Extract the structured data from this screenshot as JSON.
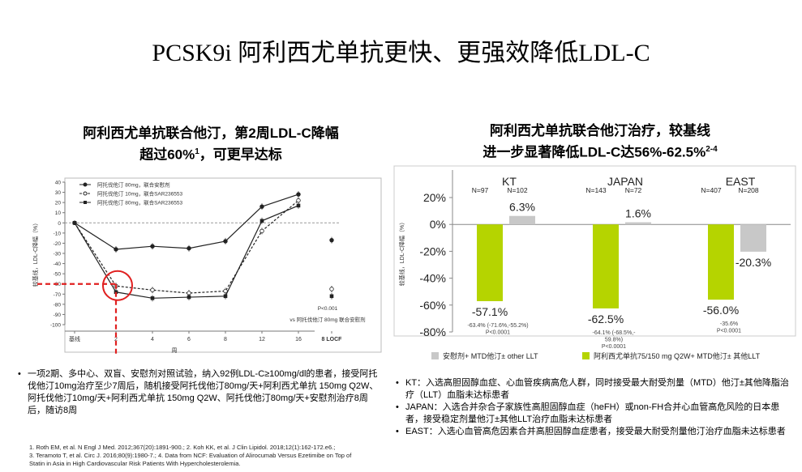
{
  "title": "PCSK9i 阿利西尤单抗更快、更强效降低LDL-C",
  "left_panel": {
    "title_line1": "阿利西尤单抗联合他汀，第2周LDL-C降幅",
    "title_line2_main": "超过60%",
    "title_line2_sup": "1",
    "title_line2_end": "，可更早达标"
  },
  "right_panel": {
    "title_line1": "阿利西尤单抗联合他汀治疗，较基线",
    "title_line2_main": "进一步显著降低LDL-C达56%-62.5%",
    "title_line2_sup": "2-4"
  },
  "chart_data": [
    {
      "type": "line",
      "ylabel": "较基线，LDL-C降幅（%）",
      "xlabel": "周",
      "ylim": [
        -100,
        40
      ],
      "yticks": [
        40,
        30,
        20,
        10,
        0,
        -10,
        -20,
        -30,
        -40,
        -50,
        -60,
        -70,
        -80,
        -90,
        -100
      ],
      "x": [
        "基线",
        "2",
        "4",
        "6",
        "8",
        "12",
        "16",
        "8 LOCF"
      ],
      "series": [
        {
          "name": "阿托伐他汀 80mg，联合安慰剂",
          "style": "circle-solid",
          "values": [
            0,
            -26,
            -23,
            -25,
            -18,
            16,
            28,
            -17
          ]
        },
        {
          "name": "阿托伐他汀 10mg，联合SAR236553",
          "style": "dashed-open",
          "values": [
            0,
            -62,
            -66,
            -69,
            -67,
            -8,
            22,
            -65
          ]
        },
        {
          "name": "阿托伐他汀 80mg，联合SAR236553",
          "style": "square-solid",
          "values": [
            0,
            -68,
            -74,
            -73,
            -72,
            2,
            17,
            -72
          ]
        }
      ],
      "annotations": [
        "P<0.001",
        "vs 阿托伐他汀 80mg 联合安慰剂"
      ],
      "legend": "top-left",
      "highlight": {
        "x": "2",
        "y": -60,
        "color": "#e02020"
      }
    },
    {
      "type": "bar",
      "ylim": [
        -80,
        20
      ],
      "yticks": [
        "20%",
        "0%",
        "-20%",
        "-40%",
        "-60%",
        "-80%"
      ],
      "ylabel": "较基线，LDL-C降幅（%）",
      "groups": [
        {
          "name": "KT",
          "n_green": "N=97",
          "n_grey": "N=102",
          "green": -57.1,
          "grey": 6.3,
          "green_label": "-57.1%",
          "grey_label": "6.3%",
          "sub": [
            "-63.4% (-71.6%,-55.2%)",
            "P<0.0001"
          ]
        },
        {
          "name": "JAPAN",
          "n_green": "N=143",
          "n_grey": "N=72",
          "green": -62.5,
          "grey": 1.6,
          "green_label": "-62.5%",
          "grey_label": "1.6%",
          "sub": [
            "-64.1% (-68.5%,-",
            "59.8%)",
            "P<0.0001"
          ]
        },
        {
          "name": "EAST",
          "n_green": "N=407",
          "n_grey": "N=208",
          "green": -56.0,
          "grey": -20.3,
          "green_label": "-56.0%",
          "grey_label": "-20.3%",
          "sub": [
            "-35.6%",
            "P<0.0001"
          ]
        }
      ],
      "series": [
        {
          "name": "安慰剂+ MTD他汀± other LLT",
          "color": "#c8c8c8"
        },
        {
          "name": "阿利西尤单抗75/150 mg Q2W+ MTD他汀± 其他LLT",
          "color": "#b5d400"
        }
      ]
    }
  ],
  "left_bullets": [
    "一项2期、多中心、双盲、安慰剂对照试验，纳入92例LDL-C≥100mg/dl的患者，接受阿托伐他汀10mg治疗至少7周后，随机接受阿托伐他汀80mg/天+阿利西尤单抗 150mg Q2W、阿托伐他汀10mg/天+阿利西尤单抗 150mg Q2W、阿托伐他汀80mg/天+安慰剂治疗8周后，随访8周"
  ],
  "right_bullets": [
    "KT：入选高胆固醇血症、心血管疾病高危人群，同时接受最大耐受剂量（MTD）他汀±其他降脂治疗（LLT）血脂未达标患者",
    "JAPAN：入选合并杂合子家族性高胆固醇血症（heFH）或non-FH合并心血管高危风险的日本患者，接受稳定剂量他汀±其他LLT治疗血脂未达标患者",
    "EAST：入选心血管高危因素合并高胆固醇血症患者，接受最大耐受剂量他汀治疗血脂未达标患者"
  ],
  "references": [
    "1. Roth EM, et al. N Engl J Med. 2012;367(20):1891-900.; 2. Koh KK, et al. J Clin Lipidol. 2018;12(1):162-172.e6.;",
    "3. Teramoto T, et al. Circ J. 2016;80(9):1980-7.; 4. Data from NCF: Evaluation of Alirocumab Versus Ezetimibe on Top of",
    "Statin in Asia in High Cardiovascular Risk Patients With Hypercholesterolemia."
  ]
}
